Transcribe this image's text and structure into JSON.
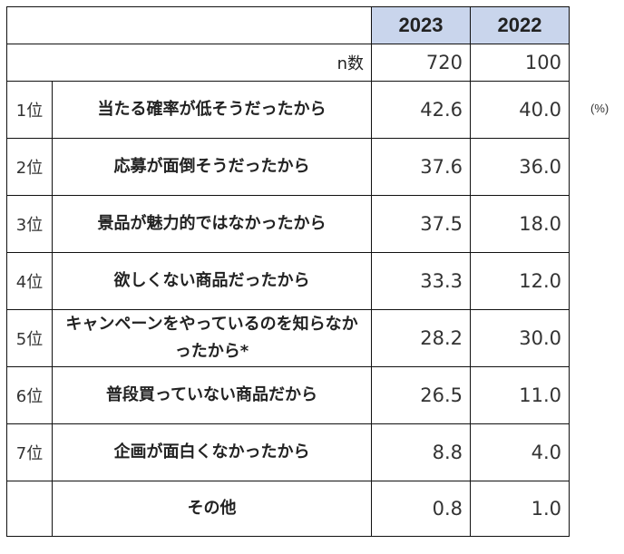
{
  "unit_note": "(%)",
  "chart_data": {
    "type": "table",
    "columns": [
      "2023",
      "2022"
    ],
    "n_label": "n数",
    "n": [
      "720",
      "100"
    ],
    "rows": [
      {
        "rank": "1位",
        "label": "当たる確率が低そうだったから",
        "values": [
          "42.6",
          "40.0"
        ]
      },
      {
        "rank": "2位",
        "label": "応募が面倒そうだったから",
        "values": [
          "37.6",
          "36.0"
        ]
      },
      {
        "rank": "3位",
        "label": "景品が魅力的ではなかったから",
        "values": [
          "37.5",
          "18.0"
        ]
      },
      {
        "rank": "4位",
        "label": "欲しくない商品だったから",
        "values": [
          "33.3",
          "12.0"
        ]
      },
      {
        "rank": "5位",
        "label": "キャンペーンをやっているのを知らなかったから*",
        "values": [
          "28.2",
          "30.0"
        ]
      },
      {
        "rank": "6位",
        "label": "普段買っていない商品だから",
        "values": [
          "26.5",
          "11.0"
        ]
      },
      {
        "rank": "7位",
        "label": "企画が面白くなかったから",
        "values": [
          "8.8",
          "4.0"
        ]
      },
      {
        "rank": "",
        "label": "その他",
        "values": [
          "0.8",
          "1.0"
        ]
      }
    ]
  }
}
